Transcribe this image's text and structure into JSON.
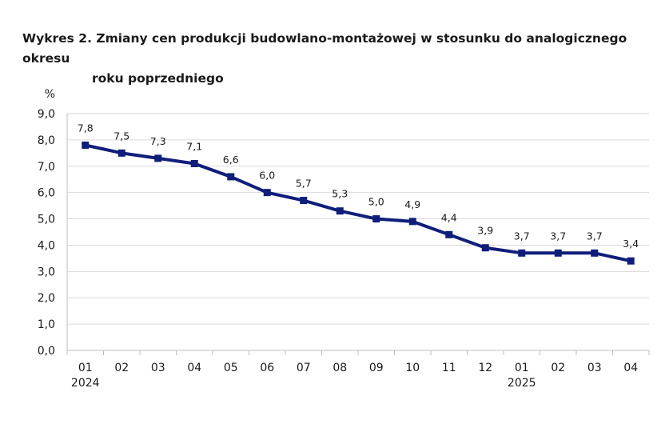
{
  "chart_data": {
    "type": "line",
    "title_line1": "Wykres 2. Zmiany cen produkcji budowlano-montażowej w stosunku do analogicznego okresu",
    "title_line2": "roku poprzedniego",
    "ylabel": "%",
    "xlabel": "",
    "ylim": [
      0,
      9
    ],
    "yticks": [
      "0,0",
      "1,0",
      "2,0",
      "3,0",
      "4,0",
      "5,0",
      "6,0",
      "7,0",
      "8,0",
      "9,0"
    ],
    "categories": [
      "01",
      "02",
      "03",
      "04",
      "05",
      "06",
      "07",
      "08",
      "09",
      "10",
      "11",
      "12",
      "01",
      "02",
      "03",
      "04"
    ],
    "year_labels": [
      {
        "index": 0,
        "label": "2024"
      },
      {
        "index": 12,
        "label": "2025"
      }
    ],
    "series": [
      {
        "name": "Zmiany cen produkcji budowlano-montażowej",
        "values": [
          7.8,
          7.5,
          7.3,
          7.1,
          6.6,
          6.0,
          5.7,
          5.3,
          5.0,
          4.9,
          4.4,
          3.9,
          3.7,
          3.7,
          3.7,
          3.4
        ],
        "value_labels": [
          "7,8",
          "7,5",
          "7,3",
          "7,1",
          "6,6",
          "6,0",
          "5,7",
          "5,3",
          "5,0",
          "4,9",
          "4,4",
          "3,9",
          "3,7",
          "3,7",
          "3,7",
          "3,4"
        ],
        "color": "#0f1e7a"
      }
    ],
    "grid": true,
    "grid_color": "#d9d9d9",
    "axis_color": "#bfbfbf"
  }
}
